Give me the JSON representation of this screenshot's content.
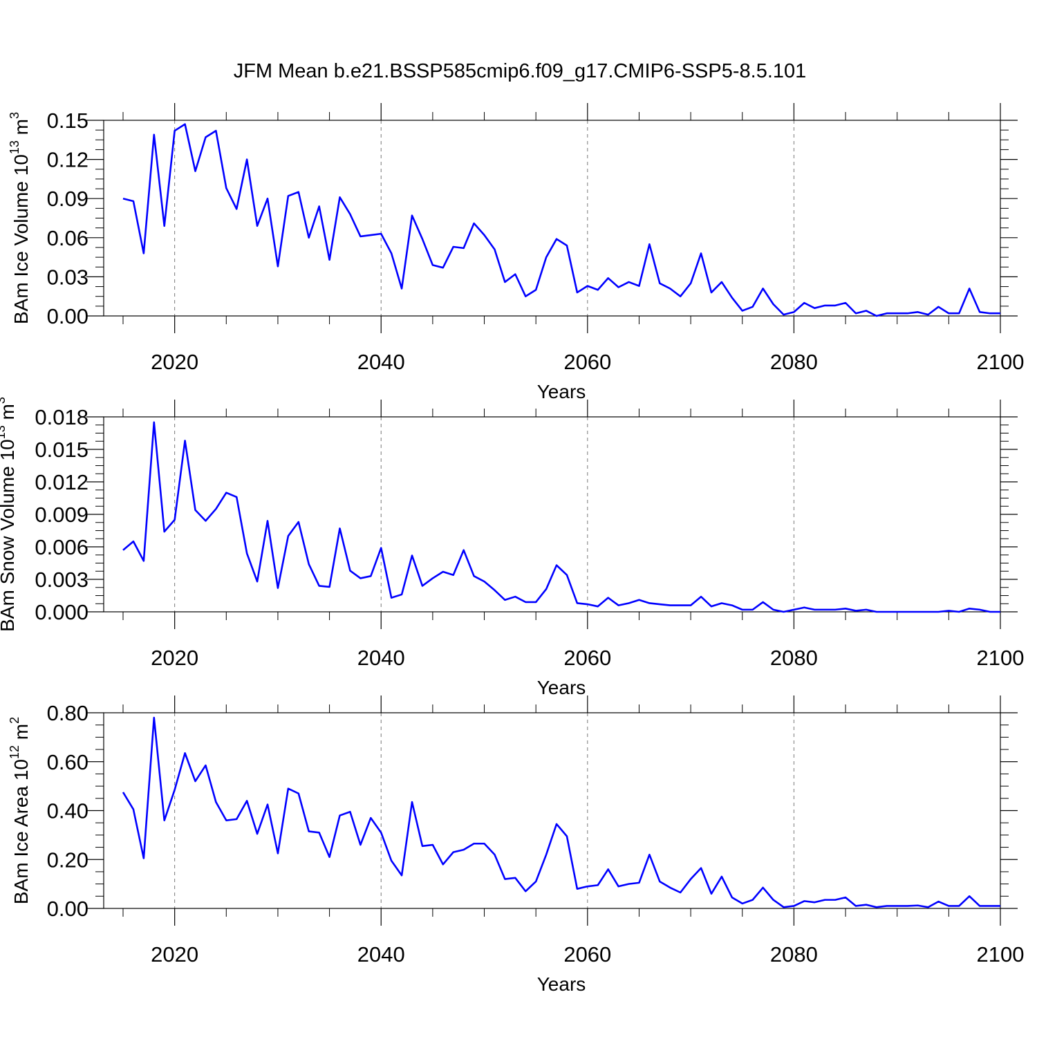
{
  "title": "JFM Mean b.e21.BSSP585cmip6.f09_g17.CMIP6-SSP5-8.5.101",
  "line_color": "#0000ff",
  "chart_data": [
    {
      "type": "line",
      "ylabel_main": "BAm Ice Volume 10",
      "ylabel_exp": "13",
      "ylabel_unit": " m",
      "ylabel_unit_exp": "3",
      "xlabel": "Years",
      "xlim": [
        2015,
        2100
      ],
      "ylim": [
        0,
        0.15
      ],
      "x_ticks": [
        2020,
        2040,
        2060,
        2080,
        2100
      ],
      "y_ticks": [
        "0.00",
        "0.03",
        "0.06",
        "0.09",
        "0.12",
        "0.15"
      ],
      "y_step": 0.03,
      "grid": "vertical dashed at major x ticks",
      "series": [
        {
          "x_start": 2015,
          "values": [
            0.09,
            0.088,
            0.048,
            0.139,
            0.069,
            0.142,
            0.147,
            0.111,
            0.137,
            0.142,
            0.098,
            0.082,
            0.12,
            0.069,
            0.09,
            0.038,
            0.092,
            0.095,
            0.06,
            0.084,
            0.043,
            0.091,
            0.078,
            0.061,
            0.062,
            0.063,
            0.048,
            0.021,
            0.077,
            0.059,
            0.039,
            0.037,
            0.053,
            0.052,
            0.071,
            0.062,
            0.051,
            0.026,
            0.032,
            0.015,
            0.02,
            0.045,
            0.059,
            0.054,
            0.018,
            0.023,
            0.02,
            0.029,
            0.022,
            0.026,
            0.023,
            0.055,
            0.025,
            0.021,
            0.015,
            0.025,
            0.048,
            0.018,
            0.026,
            0.014,
            0.004,
            0.007,
            0.021,
            0.009,
            0.001,
            0.003,
            0.01,
            0.006,
            0.008,
            0.008,
            0.01,
            0.002,
            0.004,
            0.0,
            0.002,
            0.002,
            0.002,
            0.003,
            0.001,
            0.007,
            0.002,
            0.002,
            0.021,
            0.003,
            0.002,
            0.002
          ]
        }
      ]
    },
    {
      "type": "line",
      "ylabel_main": "BAm Snow Volume 10",
      "ylabel_exp": "13",
      "ylabel_unit": " m",
      "ylabel_unit_exp": "3",
      "xlabel": "Years",
      "xlim": [
        2015,
        2100
      ],
      "ylim": [
        0,
        0.018
      ],
      "x_ticks": [
        2020,
        2040,
        2060,
        2080,
        2100
      ],
      "y_ticks": [
        "0.000",
        "0.003",
        "0.006",
        "0.009",
        "0.012",
        "0.015",
        "0.018"
      ],
      "y_step": 0.003,
      "grid": "vertical dashed at major x ticks",
      "series": [
        {
          "x_start": 2015,
          "values": [
            0.0057,
            0.0065,
            0.0047,
            0.0175,
            0.0074,
            0.0085,
            0.0158,
            0.0094,
            0.0084,
            0.0095,
            0.011,
            0.0106,
            0.0054,
            0.0028,
            0.0084,
            0.0022,
            0.007,
            0.0083,
            0.0044,
            0.0024,
            0.0023,
            0.0077,
            0.0038,
            0.0031,
            0.0033,
            0.0059,
            0.0013,
            0.0016,
            0.0052,
            0.0024,
            0.0031,
            0.0037,
            0.0034,
            0.0057,
            0.0033,
            0.0028,
            0.002,
            0.0011,
            0.0014,
            0.0009,
            0.0009,
            0.0021,
            0.0043,
            0.0034,
            0.0008,
            0.0007,
            0.0005,
            0.0013,
            0.0006,
            0.0008,
            0.0011,
            0.0008,
            0.0007,
            0.0006,
            0.0006,
            0.0006,
            0.0014,
            0.0005,
            0.0008,
            0.0006,
            0.0002,
            0.0002,
            0.0009,
            0.0002,
            0.0,
            0.0002,
            0.0004,
            0.0002,
            0.0002,
            0.0002,
            0.0003,
            0.0001,
            0.0002,
            0.0,
            0.0,
            0.0,
            0.0,
            0.0,
            0.0,
            0.0,
            0.0001,
            0.0,
            0.0003,
            0.0002,
            0.0,
            0.0
          ]
        }
      ]
    },
    {
      "type": "line",
      "ylabel_main": "BAm Ice Area 10",
      "ylabel_exp": "12",
      "ylabel_unit": " m",
      "ylabel_unit_exp": "2",
      "xlabel": "Years",
      "xlim": [
        2015,
        2100
      ],
      "ylim": [
        0,
        0.8
      ],
      "x_ticks": [
        2020,
        2040,
        2060,
        2080,
        2100
      ],
      "y_ticks": [
        "0.00",
        "0.20",
        "0.40",
        "0.60",
        "0.80"
      ],
      "y_step": 0.2,
      "grid": "vertical dashed at major x ticks",
      "series": [
        {
          "x_start": 2015,
          "values": [
            0.475,
            0.405,
            0.205,
            0.78,
            0.36,
            0.485,
            0.635,
            0.52,
            0.585,
            0.435,
            0.36,
            0.365,
            0.44,
            0.305,
            0.425,
            0.225,
            0.49,
            0.47,
            0.315,
            0.31,
            0.21,
            0.38,
            0.395,
            0.26,
            0.37,
            0.31,
            0.195,
            0.135,
            0.435,
            0.255,
            0.26,
            0.18,
            0.23,
            0.24,
            0.265,
            0.265,
            0.22,
            0.12,
            0.125,
            0.07,
            0.11,
            0.22,
            0.345,
            0.295,
            0.08,
            0.09,
            0.095,
            0.16,
            0.09,
            0.1,
            0.105,
            0.22,
            0.11,
            0.085,
            0.065,
            0.12,
            0.165,
            0.06,
            0.13,
            0.045,
            0.02,
            0.035,
            0.085,
            0.035,
            0.005,
            0.01,
            0.03,
            0.025,
            0.035,
            0.035,
            0.045,
            0.01,
            0.015,
            0.005,
            0.01,
            0.01,
            0.01,
            0.012,
            0.005,
            0.028,
            0.01,
            0.01,
            0.05,
            0.01,
            0.01,
            0.01
          ]
        }
      ]
    }
  ]
}
